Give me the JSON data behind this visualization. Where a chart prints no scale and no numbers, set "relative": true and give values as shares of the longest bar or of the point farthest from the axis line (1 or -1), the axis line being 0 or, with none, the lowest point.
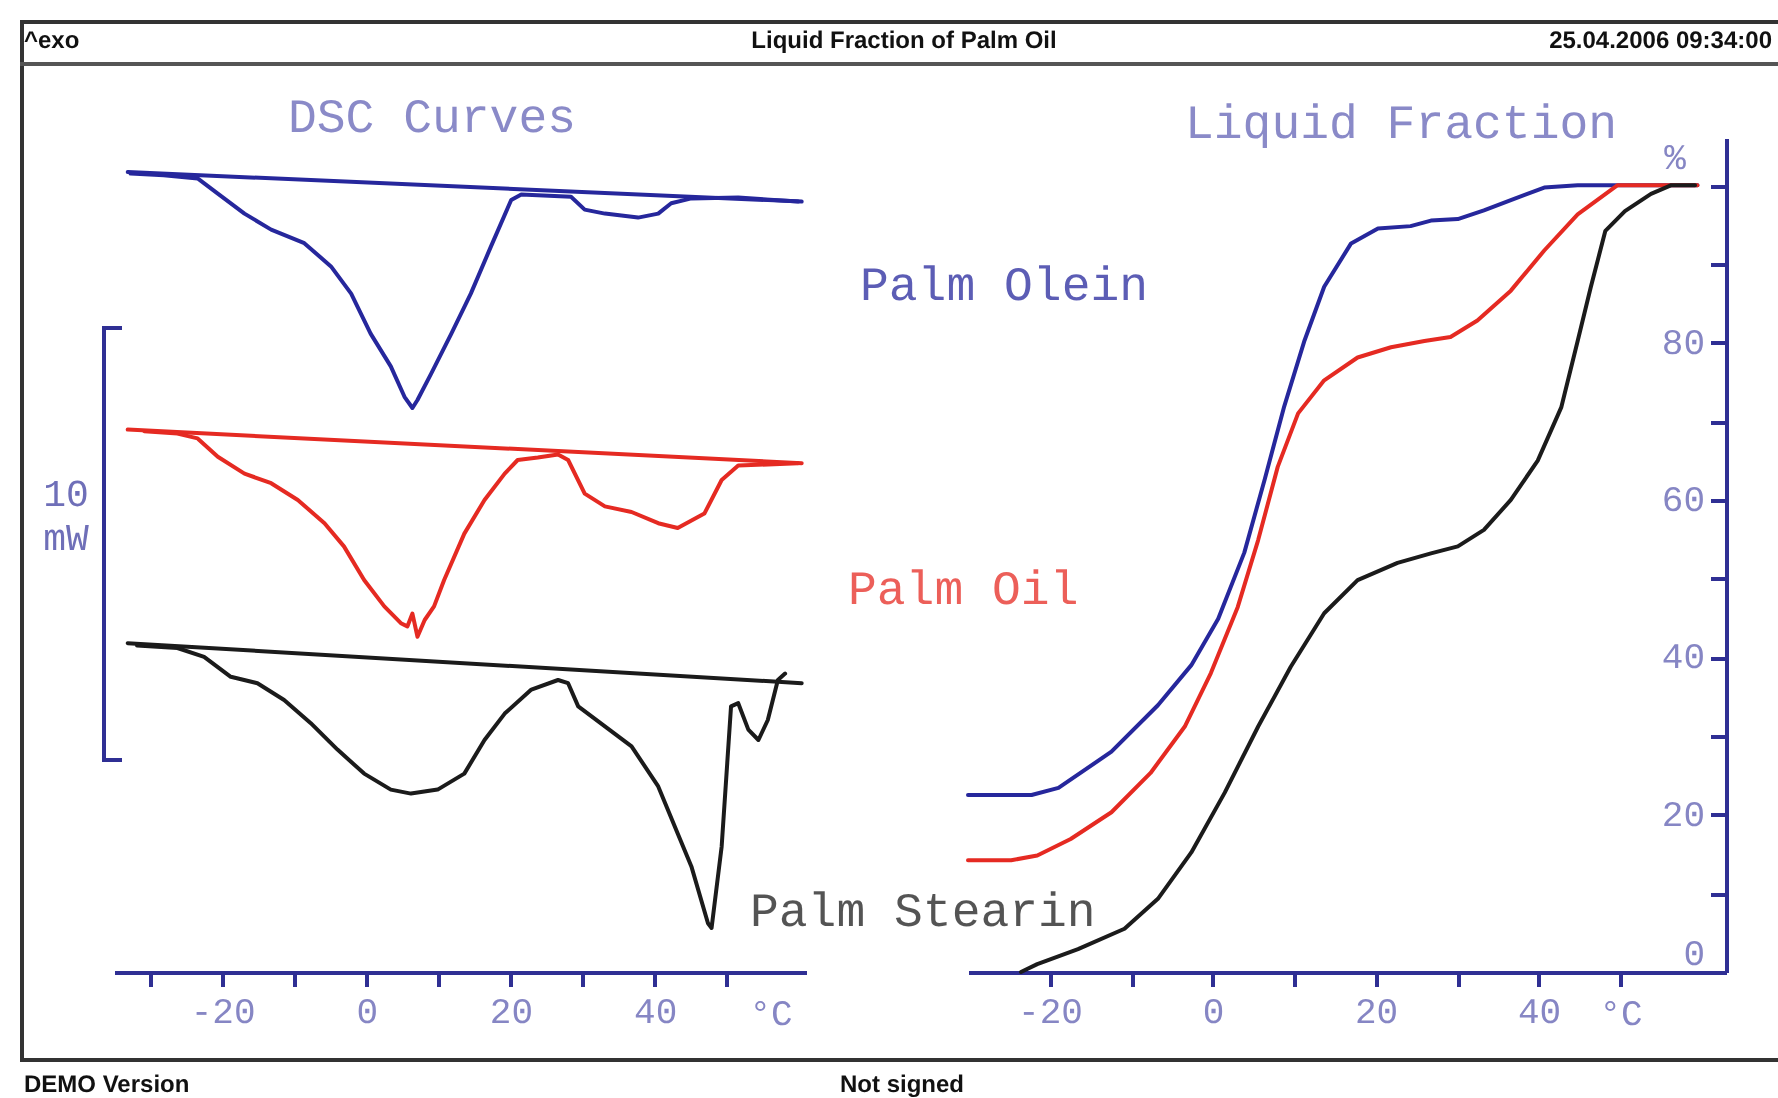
{
  "chart_data": [
    {
      "type": "line",
      "title": "DSC Curves",
      "xlabel": "°C",
      "relative": true,
      "xlim": [
        -35,
        61
      ],
      "xticks": [
        {
          "value": -30,
          "label": null
        },
        -20,
        {
          "value": -10,
          "label": null
        },
        0,
        {
          "value": 10,
          "label": null
        },
        20,
        {
          "value": 30,
          "label": null
        },
        40,
        {
          "value": 50,
          "label": null
        }
      ],
      "line_style": "solid",
      "annotations": [
        "^exo",
        "Liquid Fraction of Palm Oil",
        "25.04.2006 09:34:00",
        "10 mW",
        "DEMO Version",
        "Not signed"
      ],
      "series": [
        {
          "name": "Palm Olein",
          "color": "#26279c",
          "x": [
            -32.7,
            -28.1,
            -23.4,
            -20.6,
            -16.9,
            -13.2,
            -8.6,
            -4.9,
            -2.1,
            0.6,
            3.4,
            5.3,
            6.4,
            7.1,
            9.0,
            11.8,
            14.5,
            17.3,
            20.1,
            21.5,
            28.4,
            30.3,
            33.1,
            37.7,
            40.5,
            42.3,
            45.1,
            51.6,
            59.9
          ],
          "values": [
            0.998,
            0.996,
            0.992,
            0.973,
            0.948,
            0.928,
            0.911,
            0.882,
            0.848,
            0.798,
            0.757,
            0.719,
            0.705,
            0.715,
            0.748,
            0.798,
            0.848,
            0.907,
            0.965,
            0.972,
            0.969,
            0.953,
            0.948,
            0.943,
            0.948,
            0.961,
            0.967,
            0.968,
            0.963
          ]
        },
        {
          "color": "#26279c",
          "x": [
            -33.1,
            60.4
          ],
          "values": [
            1.0,
            0.963
          ]
        },
        {
          "name": "Palm Oil",
          "color": "#e52a22",
          "x": [
            -30.8,
            -26.2,
            -23.4,
            -20.6,
            -16.9,
            -13.2,
            -9.5,
            -5.8,
            -3.1,
            -0.3,
            2.5,
            4.8,
            5.7,
            6.4,
            7.1,
            8.1,
            9.4,
            10.8,
            13.6,
            16.4,
            19.2,
            21.0,
            23.8,
            26.6,
            28.0,
            30.3,
            33.1,
            36.8,
            40.5,
            43.2,
            46.9,
            49.3,
            51.6,
            59.9
          ],
          "values": [
            0.676,
            0.673,
            0.667,
            0.644,
            0.623,
            0.611,
            0.59,
            0.561,
            0.532,
            0.49,
            0.457,
            0.436,
            0.432,
            0.448,
            0.419,
            0.44,
            0.457,
            0.49,
            0.548,
            0.59,
            0.623,
            0.64,
            0.643,
            0.647,
            0.64,
            0.598,
            0.582,
            0.575,
            0.561,
            0.555,
            0.573,
            0.615,
            0.633,
            0.636
          ]
        },
        {
          "color": "#e52a22",
          "x": [
            -33.1,
            60.4
          ],
          "values": [
            0.678,
            0.636
          ]
        },
        {
          "name": "Palm Stearin",
          "color": "#1b1b1b",
          "x": [
            -31.8,
            -26.2,
            -22.5,
            -18.8,
            -15.1,
            -11.4,
            -7.7,
            -4.0,
            -0.3,
            3.4,
            6.2,
            9.9,
            13.6,
            16.4,
            19.2,
            22.9,
            26.6,
            28.0,
            29.4,
            33.1,
            36.8,
            40.5,
            43.2,
            45.1,
            47.4,
            47.9,
            49.3,
            50.6,
            51.6,
            53.0,
            54.4,
            55.7,
            57.1,
            58.1
          ],
          "values": [
            0.408,
            0.405,
            0.394,
            0.369,
            0.361,
            0.34,
            0.311,
            0.278,
            0.248,
            0.228,
            0.223,
            0.228,
            0.248,
            0.29,
            0.323,
            0.353,
            0.365,
            0.361,
            0.332,
            0.307,
            0.282,
            0.232,
            0.173,
            0.132,
            0.061,
            0.055,
            0.157,
            0.332,
            0.336,
            0.303,
            0.29,
            0.315,
            0.365,
            0.373
          ]
        },
        {
          "color": "#1b1b1b",
          "x": [
            -33.1,
            60.4
          ],
          "values": [
            0.411,
            0.361
          ]
        }
      ]
    },
    {
      "type": "line",
      "title": "Liquid Fraction",
      "xlabel": "°C",
      "ylabel": "%",
      "xlim": [
        -30,
        63
      ],
      "ylim": [
        0,
        106
      ],
      "xticks": [
        -20,
        {
          "value": -10,
          "label": null
        },
        0,
        {
          "value": 10,
          "label": null
        },
        20,
        {
          "value": 30,
          "label": null
        },
        40,
        {
          "value": 50,
          "label": null
        }
      ],
      "yticks": [
        0,
        {
          "value": 10,
          "label": null
        },
        20,
        {
          "value": 30,
          "label": null
        },
        40,
        {
          "value": 50,
          "label": null
        },
        60,
        {
          "value": 70,
          "label": null
        },
        80,
        {
          "value": 90,
          "label": null
        },
        {
          "value": 100,
          "label": null
        }
      ],
      "line_style": "solid",
      "series": [
        {
          "color": "#26279c",
          "x": [
            -30.0,
            -22.2,
            -18.9,
            -12.4,
            -6.7,
            -2.6,
            0.7,
            3.9,
            6.4,
            8.8,
            11.3,
            13.7,
            17.0,
            20.3,
            24.3,
            26.8,
            30.1,
            33.3,
            36.6,
            40.7,
            44.8,
            59.5
          ],
          "values": [
            22.5,
            22.5,
            23.4,
            28.0,
            33.9,
            39.0,
            44.9,
            53.3,
            62.6,
            71.9,
            80.3,
            87.1,
            92.6,
            94.5,
            94.8,
            95.5,
            95.7,
            96.8,
            98.1,
            99.7,
            100,
            100
          ]
        },
        {
          "color": "#e52a22",
          "x": [
            -30.0,
            -24.7,
            -21.5,
            -17.4,
            -12.4,
            -7.6,
            -3.4,
            -0.2,
            3.1,
            5.6,
            8.0,
            10.5,
            13.7,
            17.8,
            21.9,
            26.0,
            29.2,
            32.5,
            36.6,
            40.7,
            44.8,
            49.7,
            59.5
          ],
          "values": [
            14.2,
            14.2,
            14.8,
            16.9,
            20.3,
            25.3,
            31.2,
            38.0,
            46.4,
            54.9,
            64.2,
            71.0,
            75.2,
            78.1,
            79.4,
            80.2,
            80.7,
            82.8,
            86.6,
            91.7,
            96.3,
            100,
            100
          ]
        },
        {
          "color": "#1b1b1b",
          "x": [
            -23.5,
            -21.5,
            -16.5,
            -10.8,
            -6.7,
            -2.6,
            1.5,
            5.6,
            9.6,
            13.7,
            17.8,
            22.7,
            26.8,
            30.1,
            33.3,
            36.6,
            39.9,
            42.8,
            44.8,
            46.4,
            48.2,
            50.6,
            53.8,
            56.3,
            59.2
          ],
          "values": [
            0,
            1.0,
            2.9,
            5.5,
            9.3,
            15.2,
            22.8,
            31.2,
            38.8,
            45.6,
            49.8,
            52.0,
            53.2,
            54.1,
            56.2,
            60.0,
            65.0,
            71.8,
            80.2,
            87.0,
            94.2,
            96.7,
            98.9,
            100,
            100
          ]
        }
      ]
    }
  ]
}
